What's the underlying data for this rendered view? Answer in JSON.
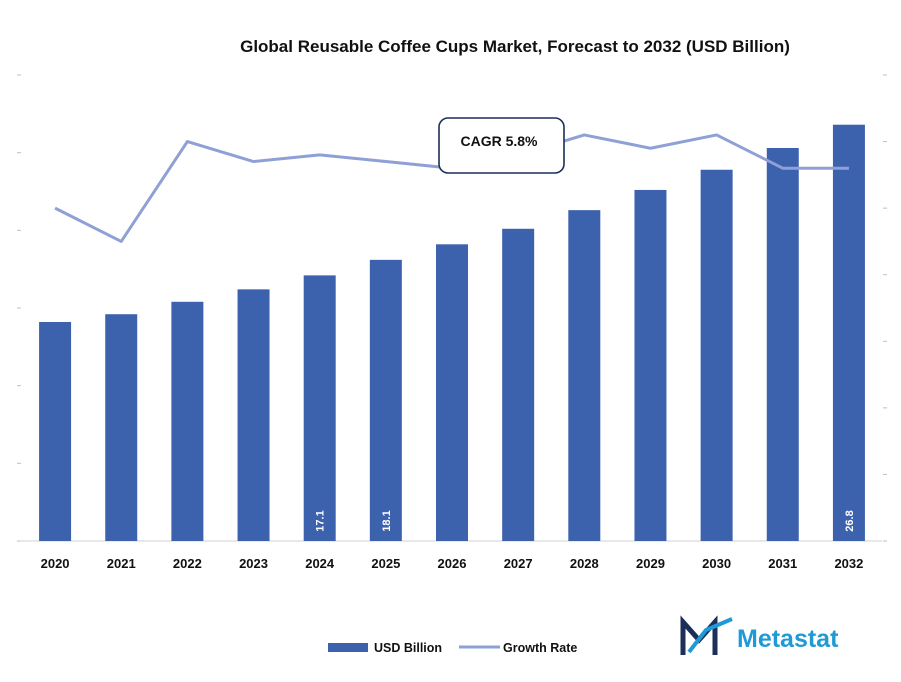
{
  "chart_data": {
    "type": "bar",
    "title": "Global Reusable Coffee Cups Market, Forecast to 2032 (USD Billion)",
    "categories": [
      "2020",
      "2021",
      "2022",
      "2023",
      "2024",
      "2025",
      "2026",
      "2027",
      "2028",
      "2029",
      "2030",
      "2031",
      "2032"
    ],
    "series": [
      {
        "name": "USD Billion",
        "type": "bar",
        "axis": "left",
        "color": "#3c62ae",
        "values": [
          14.1,
          14.6,
          15.4,
          16.2,
          17.1,
          18.1,
          19.1,
          20.1,
          21.3,
          22.6,
          23.9,
          25.3,
          26.8
        ],
        "data_labels": {
          "2024": "17.1",
          "2025": "18.1",
          "2032": "26.8"
        }
      },
      {
        "name": "Growth Rate",
        "type": "line",
        "axis": "right",
        "color": "#8fa0d6",
        "values": [
          5.0,
          4.5,
          6.0,
          5.7,
          5.8,
          5.7,
          5.6,
          5.8,
          6.1,
          5.9,
          6.1,
          5.6,
          5.6
        ]
      }
    ],
    "ylim": [
      0,
      30
    ],
    "y2lim": [
      0,
      7
    ],
    "legend": "bottom-center",
    "grid": false,
    "annotation": "CAGR 5.8%"
  },
  "brand": {
    "name": "Metastat",
    "logo_icon": "metastat-m-logo-icon",
    "color": "#1f9ad6",
    "icon_color": "#1b2f58"
  }
}
